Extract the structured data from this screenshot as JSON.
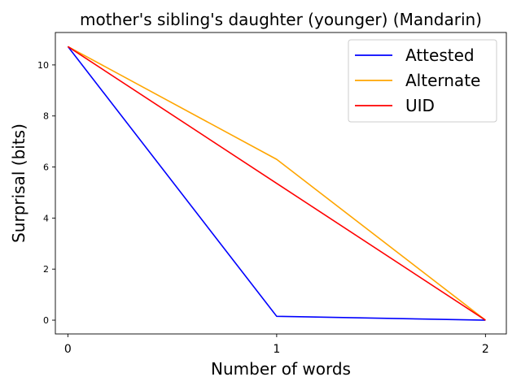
{
  "chart_data": {
    "type": "line",
    "title": "mother's sibling's daughter (younger) (Mandarin)",
    "xlabel": "Number of words",
    "ylabel": "Surprisal (bits)",
    "x": [
      0,
      1,
      2
    ],
    "xticks": [
      "0",
      "1",
      "2"
    ],
    "yticks": [
      "0",
      "2",
      "4",
      "6",
      "8",
      "10"
    ],
    "xlim": [
      -0.06,
      2.1
    ],
    "ylim": [
      -0.54,
      11.27
    ],
    "grid": false,
    "legend_position": "top-right",
    "series": [
      {
        "name": "Attested",
        "color": "#0000ff",
        "values": [
          10.72,
          0.15,
          0.0
        ]
      },
      {
        "name": "Alternate",
        "color": "#ffa500",
        "values": [
          10.72,
          6.3,
          0.0
        ]
      },
      {
        "name": "UID",
        "color": "#ff0000",
        "values": [
          10.72,
          5.36,
          0.0
        ]
      }
    ]
  }
}
